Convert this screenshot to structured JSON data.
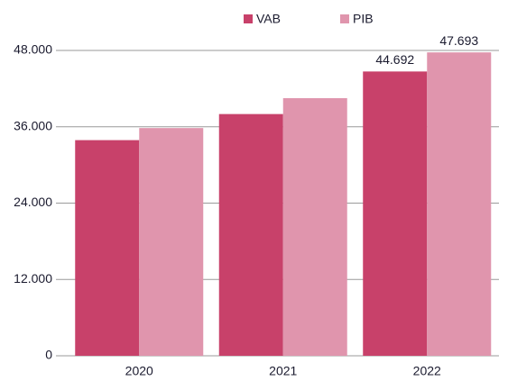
{
  "chart_data": {
    "type": "bar",
    "categories": [
      "2020",
      "2021",
      "2022"
    ],
    "series": [
      {
        "name": "VAB",
        "color": "#c8416a",
        "values": [
          33900,
          38000,
          44692
        ],
        "value_labels": [
          null,
          null,
          "44.692"
        ]
      },
      {
        "name": "PIB",
        "color": "#e095ad",
        "values": [
          35800,
          40500,
          47693
        ],
        "value_labels": [
          null,
          null,
          "47.693"
        ]
      }
    ],
    "ylim": [
      0,
      48000
    ],
    "yticks": [
      0,
      {
        "value": 12000,
        "label": "12.000"
      },
      {
        "value": 24000,
        "label": "24.000"
      },
      {
        "value": 36000,
        "label": "36.000"
      },
      {
        "value": 48000,
        "label": "48.000"
      }
    ],
    "grid": true
  }
}
